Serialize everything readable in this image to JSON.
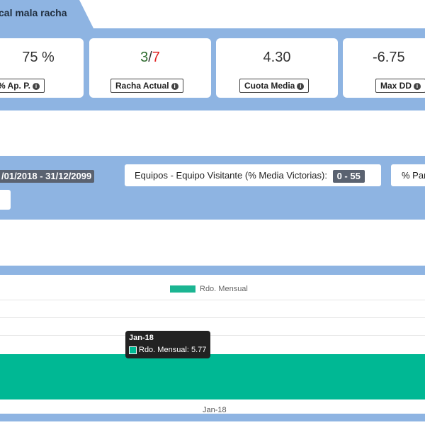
{
  "tab": {
    "label": "cal mala racha"
  },
  "stats": [
    {
      "value": "75 %",
      "label": "% Ap. P."
    },
    {
      "value_win": "3",
      "value_sep": "/",
      "value_loss": "7",
      "label": "Racha Actual"
    },
    {
      "value": "4.30",
      "label": "Cuota Media"
    },
    {
      "value": "-6.75",
      "label": "Max DD"
    }
  ],
  "filters": {
    "date_range": "/01/2018 - 31/12/2099",
    "equipos_label": "Equipos - Equipo Visitante (% Media Victorias):",
    "equipos_value": "0 - 55",
    "partial_label": "% Par"
  },
  "chart_data": {
    "type": "bar",
    "categories": [
      "Jan-18"
    ],
    "series": [
      {
        "name": "Rdo. Mensual",
        "values": [
          5.77
        ],
        "color": "#00b894"
      }
    ],
    "legend": "top-center",
    "tooltip": {
      "title": "Jan-18",
      "series": "Rdo. Mensual",
      "value": "5.77"
    }
  },
  "colors": {
    "accent_band": "#8eb4e2",
    "positive": "#2e6b2e",
    "negative": "#e02020",
    "bar": "#00b894"
  }
}
